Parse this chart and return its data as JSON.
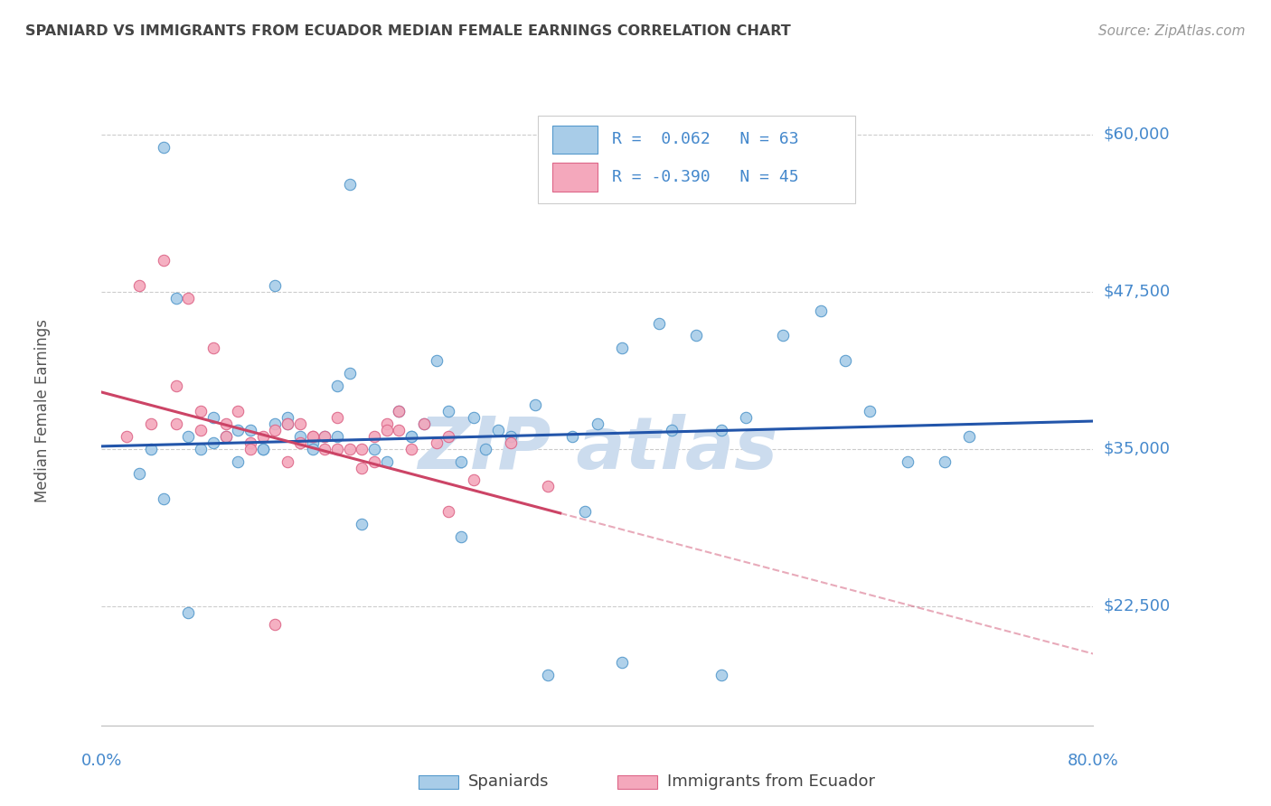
{
  "title": "SPANIARD VS IMMIGRANTS FROM ECUADOR MEDIAN FEMALE EARNINGS CORRELATION CHART",
  "source": "Source: ZipAtlas.com",
  "ylabel": "Median Female Earnings",
  "yticks": [
    22500,
    35000,
    47500,
    60000
  ],
  "ytick_labels": [
    "$22,500",
    "$35,000",
    "$47,500",
    "$60,000"
  ],
  "ymin": 13000,
  "ymax": 63000,
  "xmin": 0.0,
  "xmax": 0.8,
  "blue_color": "#a8cce8",
  "pink_color": "#f4a8bc",
  "blue_edge": "#5599cc",
  "pink_edge": "#dd6688",
  "line_blue": "#2255aa",
  "line_pink": "#cc4466",
  "title_color": "#444444",
  "source_color": "#999999",
  "axis_label_color": "#4488cc",
  "grid_color": "#cccccc",
  "watermark_color": "#ccdcee",
  "spaniards_x": [
    0.03,
    0.04,
    0.05,
    0.06,
    0.07,
    0.08,
    0.09,
    0.1,
    0.11,
    0.12,
    0.13,
    0.14,
    0.15,
    0.16,
    0.17,
    0.18,
    0.19,
    0.2,
    0.22,
    0.24,
    0.25,
    0.26,
    0.28,
    0.3,
    0.32,
    0.35,
    0.38,
    0.4,
    0.42,
    0.45,
    0.48,
    0.5,
    0.52,
    0.55,
    0.58,
    0.6,
    0.62,
    0.65,
    0.68,
    0.7,
    0.05,
    0.07,
    0.09,
    0.11,
    0.13,
    0.15,
    0.17,
    0.19,
    0.21,
    0.23,
    0.25,
    0.27,
    0.29,
    0.31,
    0.33,
    0.36,
    0.39,
    0.42,
    0.46,
    0.5,
    0.14,
    0.2,
    0.29
  ],
  "spaniards_y": [
    33000,
    35000,
    59000,
    47000,
    36000,
    35000,
    35500,
    36000,
    34000,
    36500,
    35000,
    37000,
    37500,
    36000,
    35500,
    36000,
    40000,
    41000,
    35000,
    38000,
    36000,
    37000,
    38000,
    37500,
    36500,
    38500,
    36000,
    37000,
    43000,
    45000,
    44000,
    36500,
    37500,
    44000,
    46000,
    42000,
    38000,
    34000,
    34000,
    36000,
    31000,
    22000,
    37500,
    36500,
    35000,
    37000,
    35000,
    36000,
    29000,
    34000,
    36000,
    42000,
    34000,
    35000,
    36000,
    17000,
    30000,
    18000,
    36500,
    17000,
    48000,
    56000,
    28000
  ],
  "ecuador_x": [
    0.02,
    0.03,
    0.04,
    0.05,
    0.06,
    0.07,
    0.08,
    0.09,
    0.1,
    0.11,
    0.12,
    0.13,
    0.14,
    0.15,
    0.16,
    0.17,
    0.18,
    0.19,
    0.2,
    0.21,
    0.22,
    0.23,
    0.24,
    0.25,
    0.26,
    0.27,
    0.28,
    0.3,
    0.33,
    0.36,
    0.06,
    0.08,
    0.1,
    0.12,
    0.15,
    0.17,
    0.19,
    0.22,
    0.24,
    0.28,
    0.14,
    0.18,
    0.23,
    0.21,
    0.16
  ],
  "ecuador_y": [
    36000,
    48000,
    37000,
    50000,
    40000,
    47000,
    36500,
    43000,
    37000,
    38000,
    35500,
    36000,
    36500,
    37000,
    35500,
    36000,
    35000,
    37500,
    35000,
    33500,
    36000,
    37000,
    36500,
    35000,
    37000,
    35500,
    30000,
    32500,
    35500,
    32000,
    37000,
    38000,
    36000,
    35000,
    34000,
    36000,
    35000,
    34000,
    38000,
    36000,
    21000,
    36000,
    36500,
    35000,
    37000
  ]
}
